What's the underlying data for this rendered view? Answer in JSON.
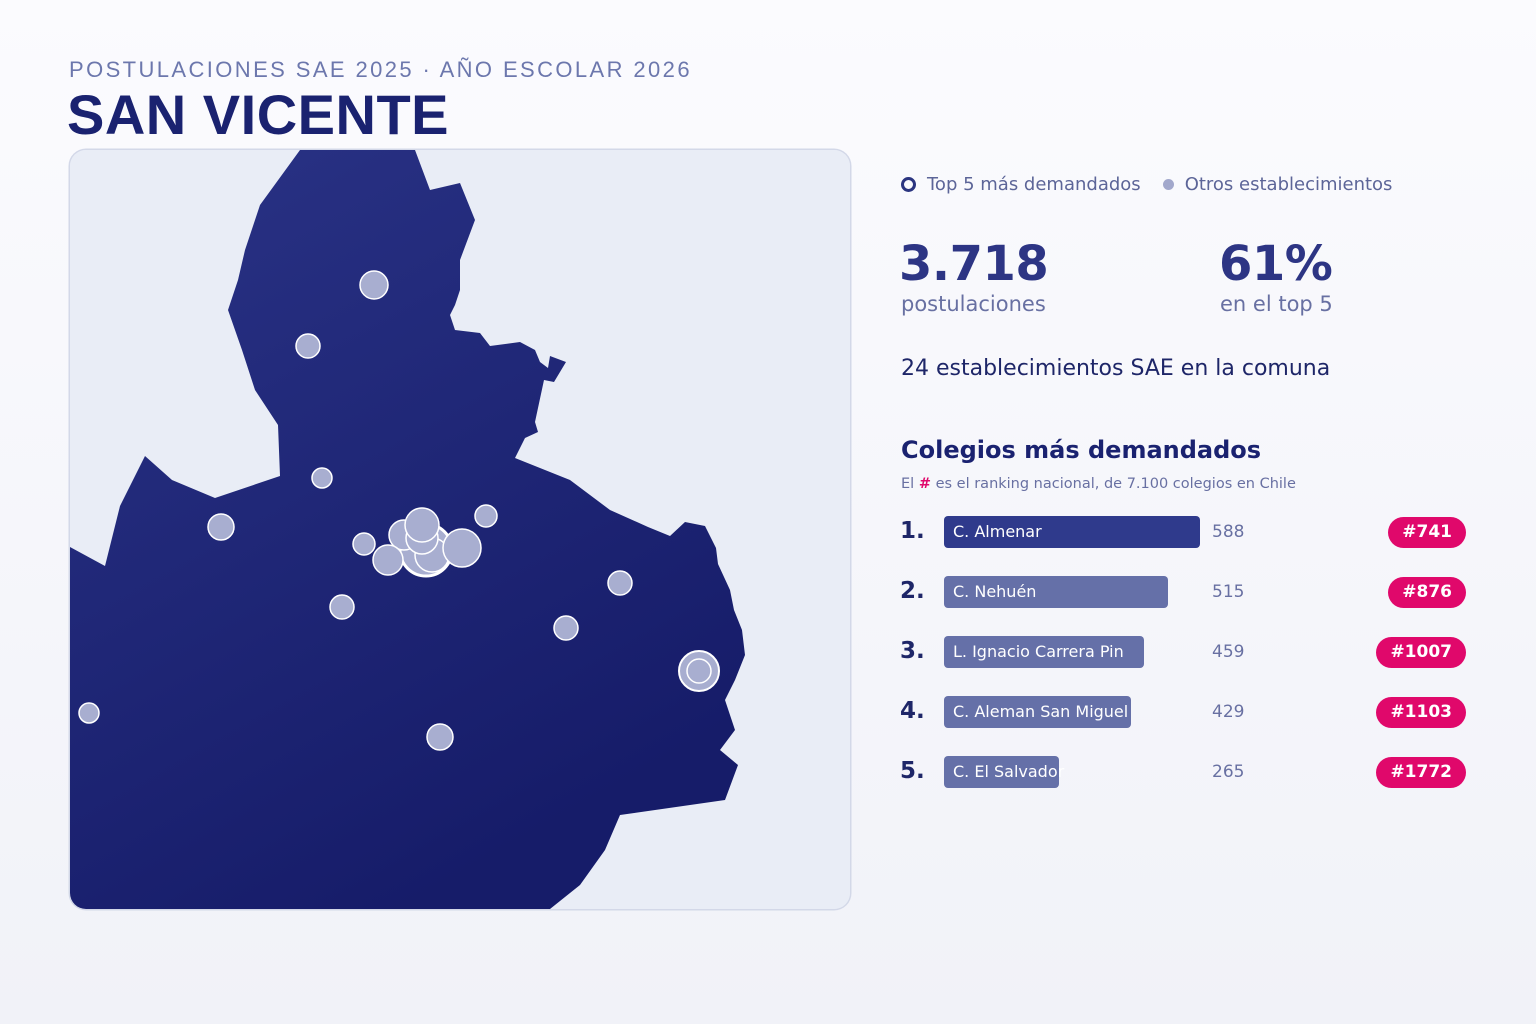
{
  "header": {
    "kicker": "POSTULACIONES SAE 2025 · AÑO ESCOLAR 2026",
    "title": "SAN VICENTE"
  },
  "legend": {
    "top5_label": "Top 5 más demandados",
    "others_label": "Otros establecimientos"
  },
  "stats": {
    "applications_value": "3.718",
    "applications_label": "postulaciones",
    "top5_share_value": "61%",
    "top5_share_label": "en el top 5",
    "establishments_line": "24 establecimientos SAE en la comuna"
  },
  "ranking": {
    "title": "Colegios más demandados",
    "note_prefix": "El",
    "note_hash": "#",
    "note_suffix": "es el ranking nacional, de 7.100 colegios en Chile",
    "items": [
      {
        "position": "1.",
        "name": "C. Almenar",
        "applications": 588,
        "national_rank": "#741"
      },
      {
        "position": "2.",
        "name": "C. Nehuén",
        "applications": 515,
        "national_rank": "#876"
      },
      {
        "position": "3.",
        "name": "L. Ignacio Carrera Pin",
        "applications": 459,
        "national_rank": "#1007"
      },
      {
        "position": "4.",
        "name": "C. Aleman San Miguel",
        "applications": 429,
        "national_rank": "#1103"
      },
      {
        "position": "5.",
        "name": "C. El Salvador",
        "applications": 265,
        "national_rank": "#1772"
      }
    ]
  },
  "colors": {
    "commune_fill_light": "#2a3386",
    "commune_fill_dark": "#161c69",
    "map_background": "#e9edf6",
    "marker_fill": "#a8aed0",
    "badge": "#e0086b",
    "top_bar": "#2f3a8c",
    "other_bar": "#6570a8"
  }
}
